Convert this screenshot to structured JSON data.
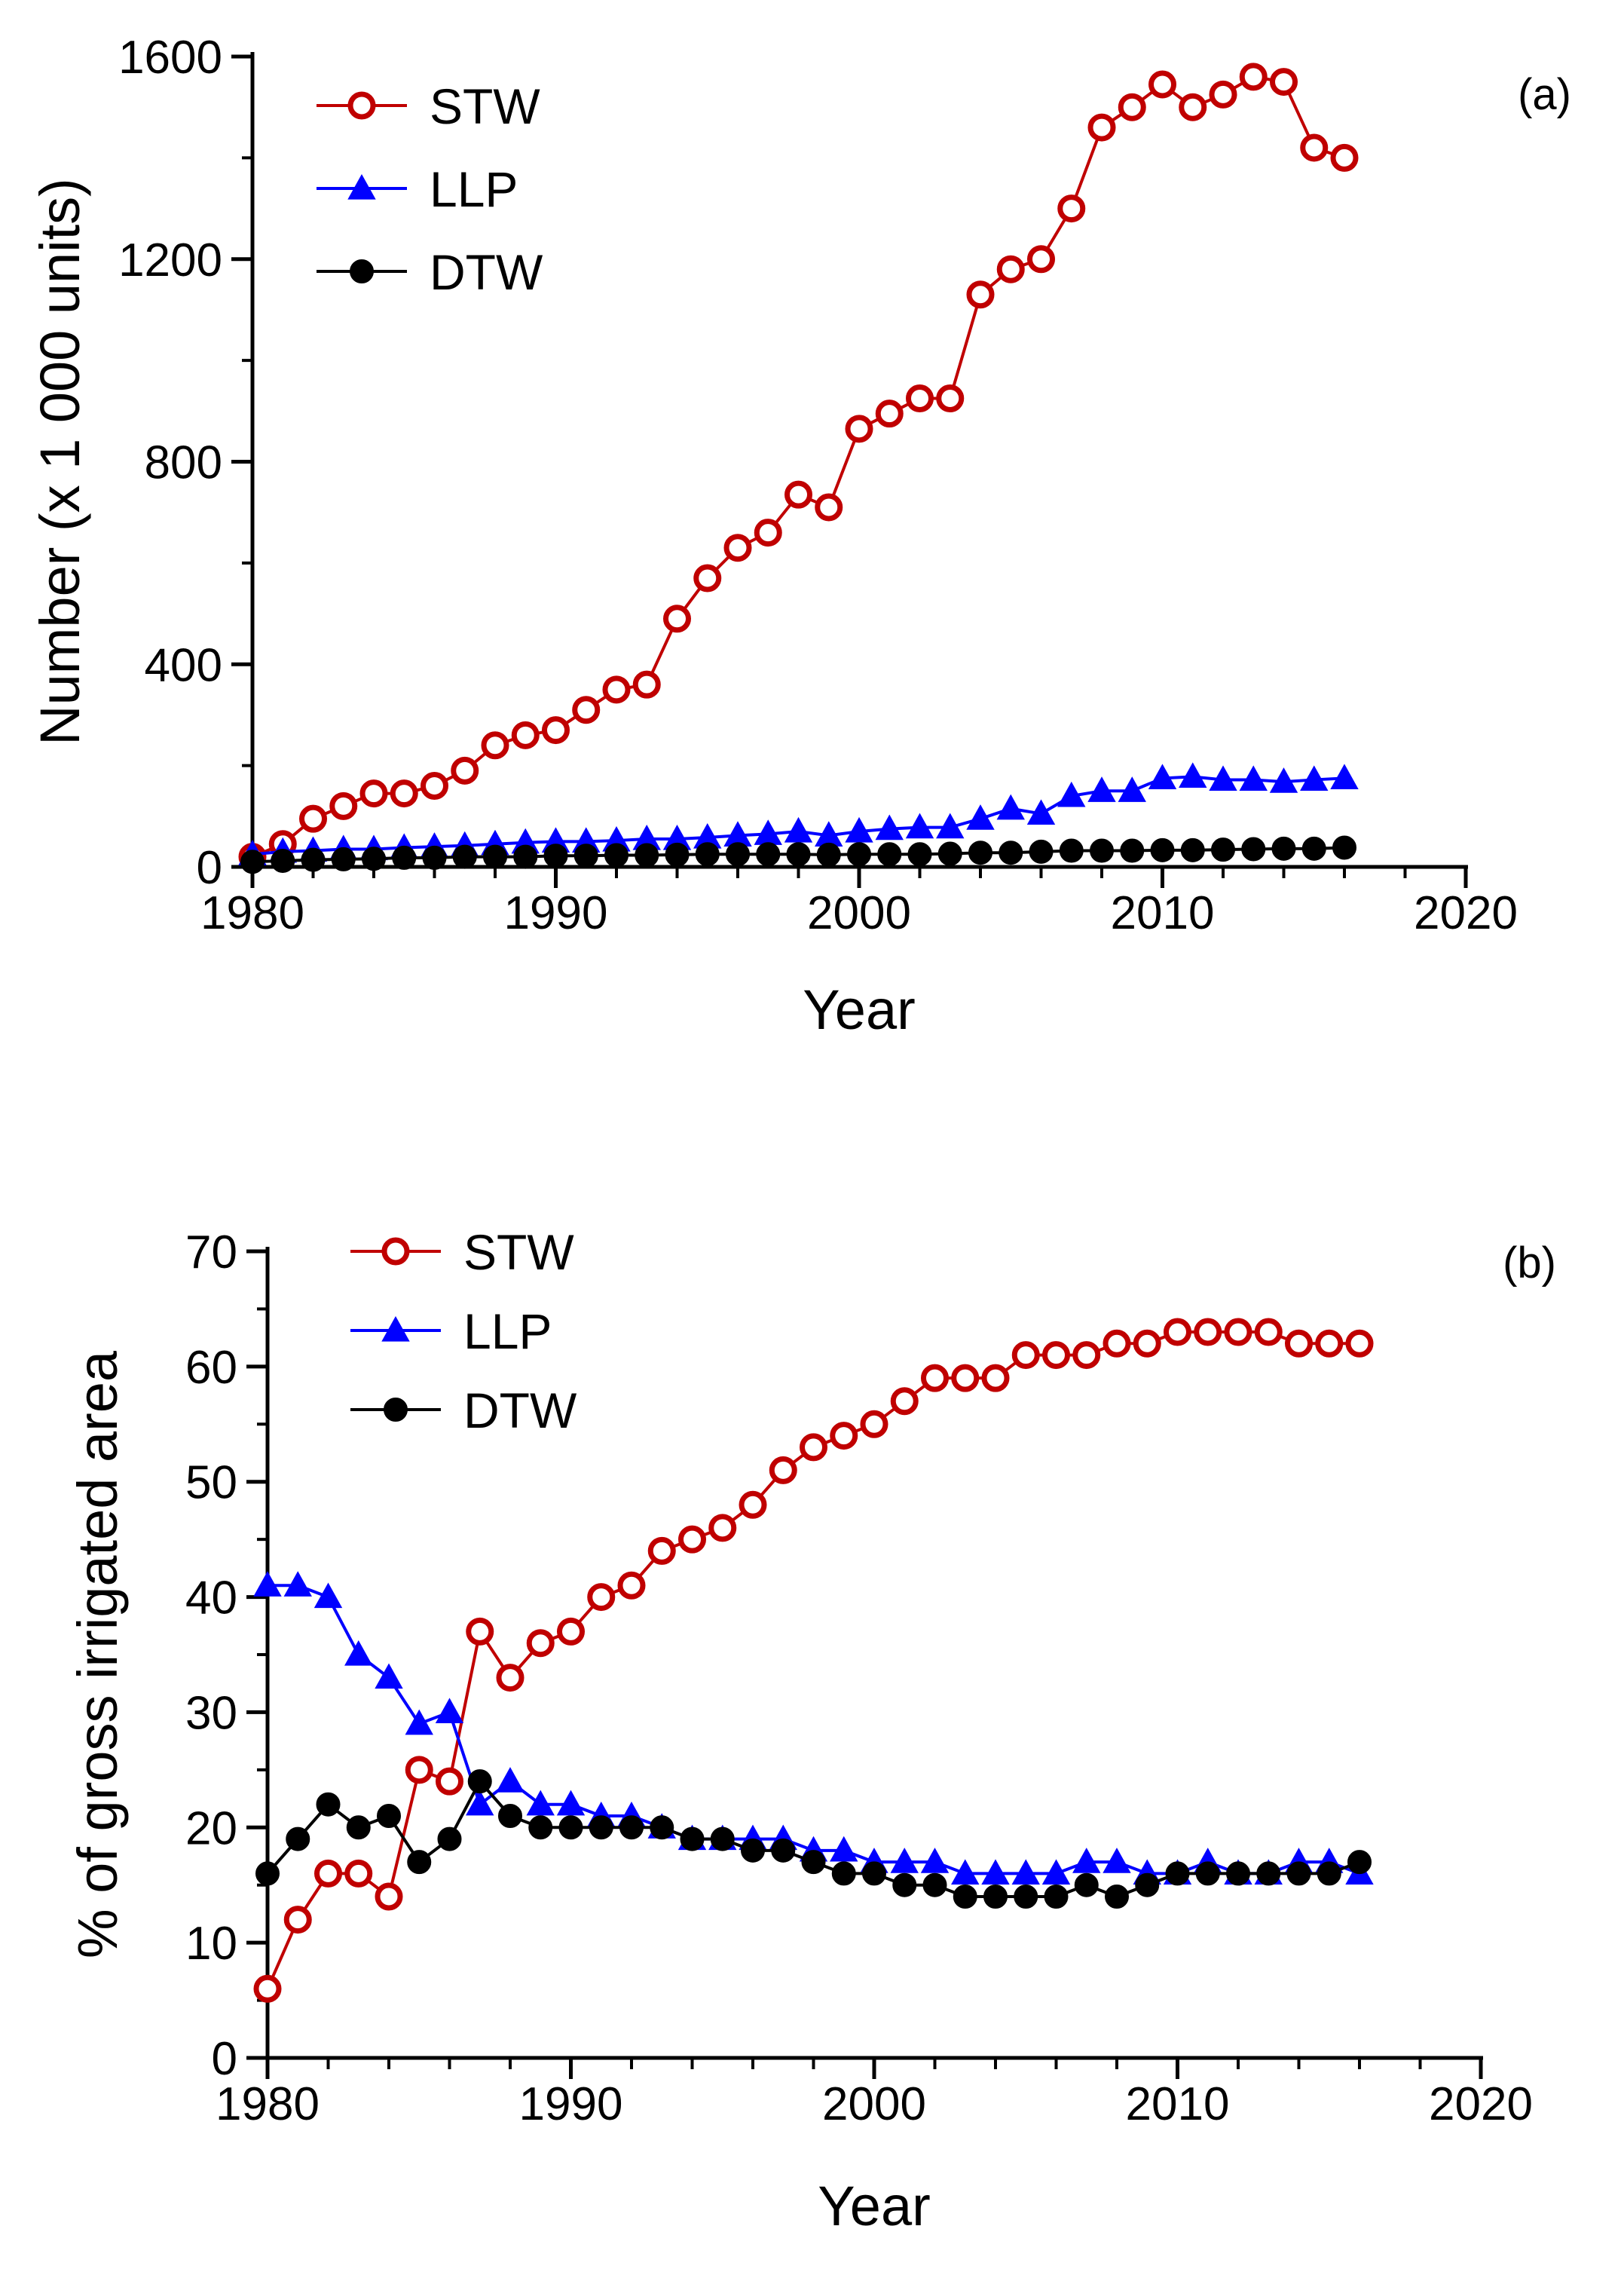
{
  "chart_data": [
    {
      "type": "line",
      "panel_label": "(a)",
      "title": "",
      "xlabel": "Year",
      "ylabel": "Number (x 1 000 units)",
      "xlim": [
        1980,
        2020
      ],
      "ylim": [
        0,
        1600
      ],
      "xticks": [
        1980,
        1990,
        2000,
        2010,
        2020
      ],
      "yticks": [
        0,
        400,
        800,
        1200,
        1600
      ],
      "legend_position": "top-left",
      "x": [
        1980,
        1981,
        1982,
        1983,
        1984,
        1985,
        1986,
        1987,
        1988,
        1989,
        1990,
        1991,
        1992,
        1993,
        1994,
        1995,
        1996,
        1997,
        1998,
        1999,
        2000,
        2001,
        2002,
        2003,
        2004,
        2005,
        2006,
        2007,
        2008,
        2009,
        2010,
        2011,
        2012,
        2013,
        2014,
        2015,
        2016
      ],
      "series": [
        {
          "name": "STW",
          "color": "#c00000",
          "marker": "open-circle",
          "values": [
            20,
            45,
            95,
            120,
            145,
            145,
            160,
            190,
            240,
            260,
            270,
            310,
            350,
            360,
            490,
            570,
            630,
            660,
            735,
            710,
            865,
            895,
            925,
            925,
            1130,
            1180,
            1200,
            1300,
            1460,
            1500,
            1545,
            1500,
            1525,
            1560,
            1550,
            1420,
            1400
          ]
        },
        {
          "name": "LLP",
          "color": "#0000ff",
          "marker": "filled-triangle",
          "values": [
            25,
            30,
            32,
            35,
            35,
            38,
            40,
            42,
            45,
            48,
            50,
            50,
            52,
            55,
            55,
            58,
            62,
            65,
            70,
            62,
            70,
            75,
            78,
            78,
            95,
            115,
            105,
            140,
            150,
            150,
            175,
            178,
            172,
            172,
            168,
            172,
            175
          ]
        },
        {
          "name": "DTW",
          "color": "#000000",
          "marker": "filled-circle",
          "values": [
            10,
            12,
            14,
            15,
            16,
            18,
            18,
            20,
            20,
            20,
            22,
            22,
            23,
            23,
            24,
            25,
            25,
            25,
            25,
            24,
            25,
            25,
            25,
            26,
            28,
            28,
            30,
            32,
            32,
            32,
            33,
            33,
            34,
            35,
            36,
            36,
            38
          ]
        }
      ]
    },
    {
      "type": "line",
      "panel_label": "(b)",
      "title": "",
      "xlabel": "Year",
      "ylabel": "% of gross irrigated area",
      "xlim": [
        1980,
        2020
      ],
      "ylim": [
        0,
        70
      ],
      "xticks": [
        1980,
        1990,
        2000,
        2010,
        2020
      ],
      "yticks": [
        0,
        10,
        20,
        30,
        40,
        50,
        60,
        70
      ],
      "legend_position": "top-left",
      "x": [
        1980,
        1981,
        1982,
        1983,
        1984,
        1985,
        1986,
        1987,
        1988,
        1989,
        1990,
        1991,
        1992,
        1993,
        1994,
        1995,
        1996,
        1997,
        1998,
        1999,
        2000,
        2001,
        2002,
        2003,
        2004,
        2005,
        2006,
        2007,
        2008,
        2009,
        2010,
        2011,
        2012,
        2013,
        2014,
        2015,
        2016
      ],
      "series": [
        {
          "name": "STW",
          "color": "#c00000",
          "marker": "open-circle",
          "values": [
            6,
            12,
            16,
            16,
            14,
            25,
            24,
            37,
            33,
            36,
            37,
            40,
            41,
            44,
            45,
            46,
            48,
            51,
            53,
            54,
            55,
            57,
            59,
            59,
            59,
            61,
            61,
            61,
            62,
            62,
            63,
            63,
            63,
            63,
            62,
            62,
            62
          ]
        },
        {
          "name": "LLP",
          "color": "#0000ff",
          "marker": "filled-triangle",
          "values": [
            41,
            41,
            40,
            35,
            33,
            29,
            30,
            22,
            24,
            22,
            22,
            21,
            21,
            20,
            19,
            19,
            19,
            19,
            18,
            18,
            17,
            17,
            17,
            16,
            16,
            16,
            16,
            17,
            17,
            16,
            16,
            17,
            16,
            16,
            17,
            17,
            16
          ]
        },
        {
          "name": "DTW",
          "color": "#000000",
          "marker": "filled-circle",
          "values": [
            16,
            19,
            22,
            20,
            21,
            17,
            19,
            24,
            21,
            20,
            20,
            20,
            20,
            20,
            19,
            19,
            18,
            18,
            17,
            16,
            16,
            15,
            15,
            14,
            14,
            14,
            14,
            15,
            14,
            15,
            16,
            16,
            16,
            16,
            16,
            16,
            17
          ]
        }
      ]
    }
  ]
}
